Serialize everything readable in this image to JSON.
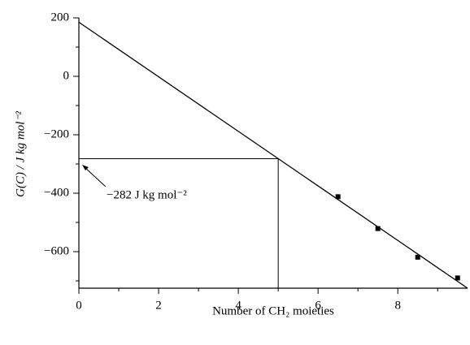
{
  "chart_data": {
    "type": "scatter",
    "x_label": "Number of CH₂ moieties",
    "y_label": "G(C) / J kg mol⁻²",
    "xlim": [
      0,
      9.75
    ],
    "ylim": [
      -725,
      200
    ],
    "xticks": [
      0,
      2,
      4,
      6,
      8
    ],
    "xminor": [
      1,
      3,
      5,
      7,
      9
    ],
    "yticks": [
      200,
      0,
      {
        "value": -200,
        "label": "−200"
      },
      {
        "value": -400,
        "label": "−400"
      },
      {
        "value": -600,
        "label": "−600"
      }
    ],
    "yminor": [
      100,
      -100,
      -300,
      -500,
      -700
    ],
    "series": [
      {
        "name": "data",
        "color": "#000000",
        "x": [
          6.5,
          7.5,
          8.5,
          9.5
        ],
        "values": [
          -412,
          -521,
          -619,
          -690
        ]
      }
    ],
    "fit": {
      "x": [
        0,
        9.75
      ],
      "values": [
        185,
        -725
      ]
    },
    "reference": {
      "x": 5,
      "y": -282
    },
    "annotation": "−282 J kg mol⁻²"
  }
}
